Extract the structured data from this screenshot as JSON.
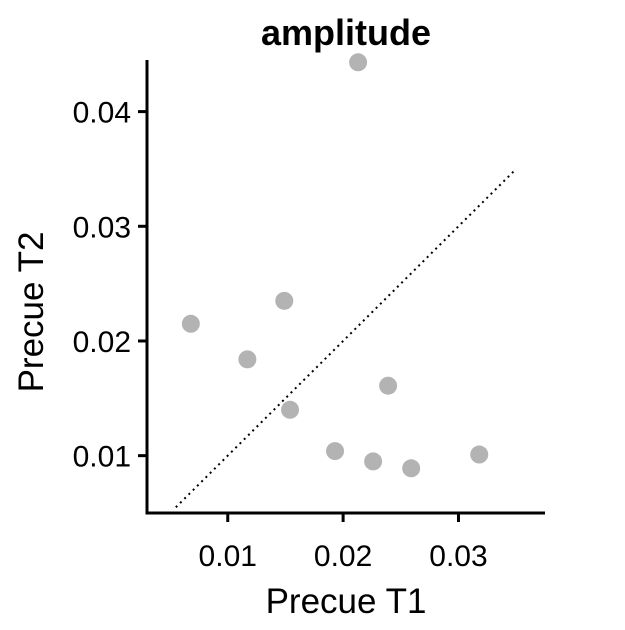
{
  "chart_data": {
    "type": "scatter",
    "title": "amplitude",
    "xlabel": "Precue T1",
    "ylabel": "Precue T2",
    "xlim": [
      0.003,
      0.0375
    ],
    "ylim": [
      0.005,
      0.0445
    ],
    "xticks": [
      0.01,
      0.02,
      0.03
    ],
    "xtick_labels": [
      "0.01",
      "0.02",
      "0.03"
    ],
    "yticks": [
      0.01,
      0.02,
      0.03,
      0.04
    ],
    "ytick_labels": [
      "0.01",
      "0.02",
      "0.03",
      "0.04"
    ],
    "grid": false,
    "legend": false,
    "identity_line": {
      "style": "dotted",
      "color": "#000000",
      "x": [
        0.0055,
        0.035
      ],
      "y": [
        0.0055,
        0.035
      ]
    },
    "point_color": "#b3b3b3",
    "points": [
      {
        "x": 0.0068,
        "y": 0.0215
      },
      {
        "x": 0.0117,
        "y": 0.0184
      },
      {
        "x": 0.0149,
        "y": 0.0235
      },
      {
        "x": 0.0154,
        "y": 0.014
      },
      {
        "x": 0.0193,
        "y": 0.0104
      },
      {
        "x": 0.0213,
        "y": 0.0443
      },
      {
        "x": 0.0226,
        "y": 0.0095
      },
      {
        "x": 0.0239,
        "y": 0.0161
      },
      {
        "x": 0.0259,
        "y": 0.0089
      },
      {
        "x": 0.0318,
        "y": 0.0101
      }
    ]
  }
}
